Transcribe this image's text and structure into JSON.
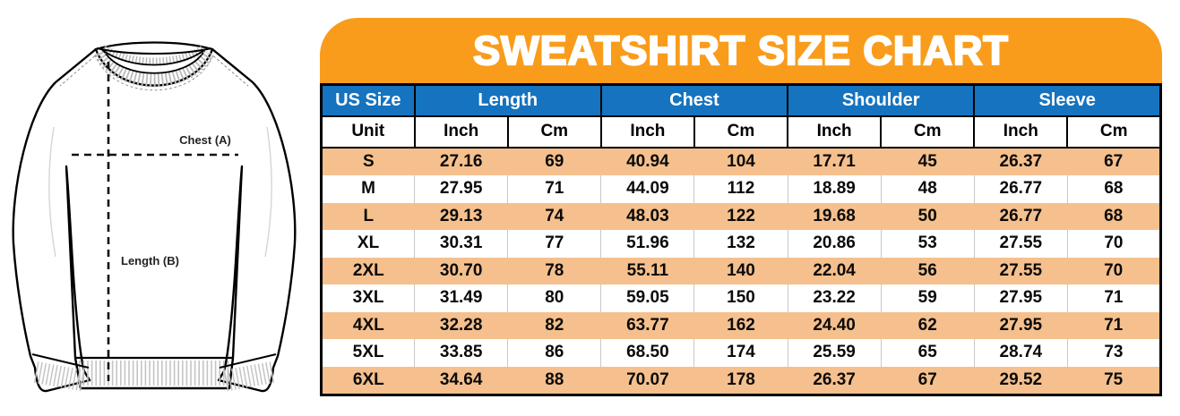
{
  "header": {
    "title": "SWEATSHIRT SIZE CHART"
  },
  "diagram": {
    "garment": "sweatshirt-front-outline",
    "chest_label": "Chest (A)",
    "length_label": "Length (B)"
  },
  "chart_data": {
    "type": "table",
    "title": "SWEATSHIRT SIZE CHART",
    "column_groups": [
      {
        "label": "US Size",
        "span": 1
      },
      {
        "label": "Length",
        "span": 2
      },
      {
        "label": "Chest",
        "span": 2
      },
      {
        "label": "Shoulder",
        "span": 2
      },
      {
        "label": "Sleeve",
        "span": 2
      }
    ],
    "unit_row": [
      "Unit",
      "Inch",
      "Cm",
      "Inch",
      "Cm",
      "Inch",
      "Cm",
      "Inch",
      "Cm"
    ],
    "rows": [
      {
        "size": "S",
        "values": [
          "27.16",
          "69",
          "40.94",
          "104",
          "17.71",
          "45",
          "26.37",
          "67"
        ]
      },
      {
        "size": "M",
        "values": [
          "27.95",
          "71",
          "44.09",
          "112",
          "18.89",
          "48",
          "26.77",
          "68"
        ]
      },
      {
        "size": "L",
        "values": [
          "29.13",
          "74",
          "48.03",
          "122",
          "19.68",
          "50",
          "26.77",
          "68"
        ]
      },
      {
        "size": "XL",
        "values": [
          "30.31",
          "77",
          "51.96",
          "132",
          "20.86",
          "53",
          "27.55",
          "70"
        ]
      },
      {
        "size": "2XL",
        "values": [
          "30.70",
          "78",
          "55.11",
          "140",
          "22.04",
          "56",
          "27.55",
          "70"
        ]
      },
      {
        "size": "3XL",
        "values": [
          "31.49",
          "80",
          "59.05",
          "150",
          "23.22",
          "59",
          "27.95",
          "71"
        ]
      },
      {
        "size": "4XL",
        "values": [
          "32.28",
          "82",
          "63.77",
          "162",
          "24.40",
          "62",
          "27.95",
          "71"
        ]
      },
      {
        "size": "5XL",
        "values": [
          "33.85",
          "86",
          "68.50",
          "174",
          "25.59",
          "65",
          "28.74",
          "73"
        ]
      },
      {
        "size": "6XL",
        "values": [
          "34.64",
          "88",
          "70.07",
          "178",
          "26.37",
          "67",
          "29.52",
          "75"
        ]
      }
    ]
  },
  "colors": {
    "banner_orange": "#f99c1c",
    "header_blue": "#1573bf",
    "row_peach": "#f5c08d",
    "border_black": "#000000",
    "text_black": "#0a0a0a"
  }
}
